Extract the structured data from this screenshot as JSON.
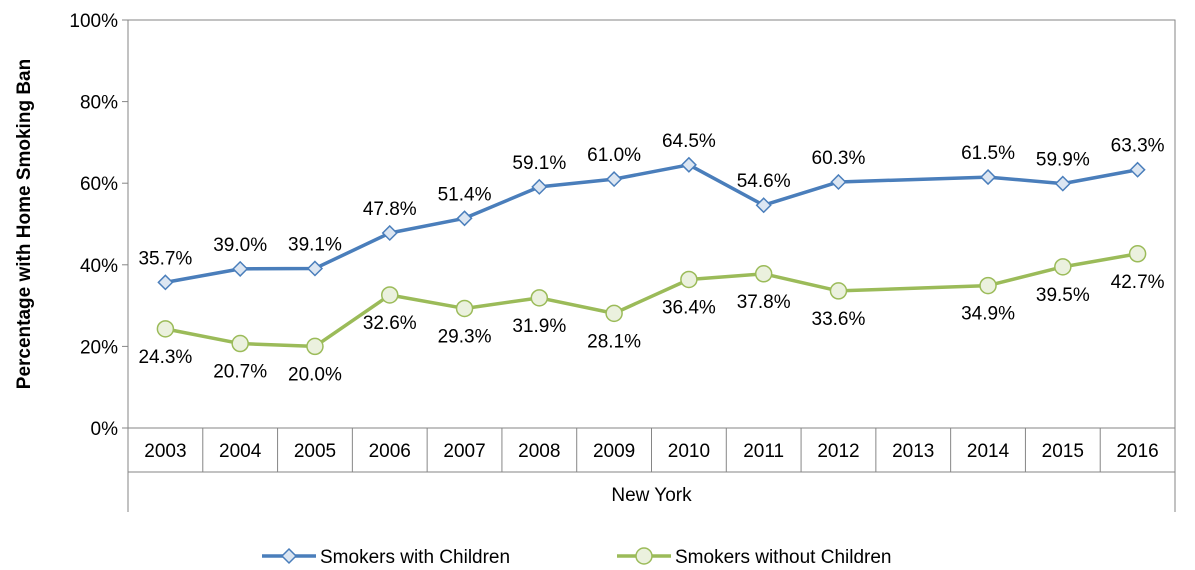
{
  "chart_data": {
    "type": "line",
    "title": "",
    "ylabel": "Percentage with Home Smoking Ban",
    "xlabel": "",
    "group_label": "New York",
    "categories": [
      "2003",
      "2004",
      "2005",
      "2006",
      "2007",
      "2008",
      "2009",
      "2010",
      "2011",
      "2012",
      "2013",
      "2014",
      "2015",
      "2016"
    ],
    "ylim": [
      0,
      100
    ],
    "yticks": [
      "0%",
      "20%",
      "40%",
      "60%",
      "80%",
      "100%"
    ],
    "ytick_values": [
      0,
      20,
      40,
      60,
      80,
      100
    ],
    "grid": false,
    "legend_position": "bottom",
    "series": [
      {
        "name": "Smokers with Children",
        "color": "#4a7ebb",
        "marker": "diamond",
        "values": [
          35.7,
          39.0,
          39.1,
          47.8,
          51.4,
          59.1,
          61.0,
          64.5,
          54.6,
          60.3,
          null,
          61.5,
          59.9,
          63.3
        ],
        "labels": [
          "35.7%",
          "39.0%",
          "39.1%",
          "47.8%",
          "51.4%",
          "59.1%",
          "61.0%",
          "64.5%",
          "54.6%",
          "60.3%",
          null,
          "61.5%",
          "59.9%",
          "63.3%"
        ],
        "label_position": "above"
      },
      {
        "name": "Smokers without Children",
        "color": "#9bbb59",
        "marker": "circle",
        "values": [
          24.3,
          20.7,
          20.0,
          32.6,
          29.3,
          31.9,
          28.1,
          36.4,
          37.8,
          33.6,
          null,
          34.9,
          39.5,
          42.7
        ],
        "labels": [
          "24.3%",
          "20.7%",
          "20.0%",
          "32.6%",
          "29.3%",
          "31.9%",
          "28.1%",
          "36.4%",
          "37.8%",
          "33.6%",
          null,
          "34.9%",
          "39.5%",
          "42.7%"
        ],
        "label_position": "below"
      }
    ]
  }
}
